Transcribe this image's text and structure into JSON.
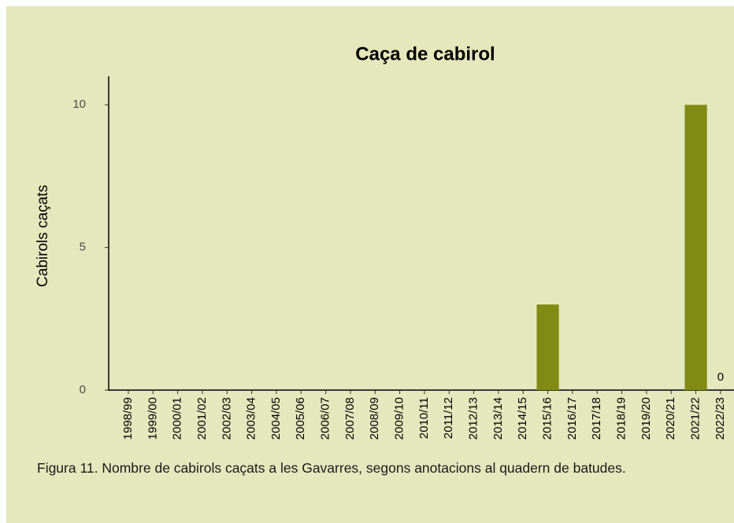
{
  "chart_data": {
    "type": "bar",
    "title": "Caça de cabirol",
    "ylabel": "Cabirols caçats",
    "categories": [
      "1998/99",
      "1999/00",
      "2000/01",
      "2001/02",
      "2002/03",
      "2003/04",
      "2004/05",
      "2005/06",
      "2006/07",
      "2007/08",
      "2008/09",
      "2009/10",
      "2010/11",
      "2011/12",
      "2012/13",
      "2013/14",
      "2014/15",
      "2015/16",
      "2016/17",
      "2017/18",
      "2018/19",
      "2019/20",
      "2020/21",
      "2021/22",
      "2022/23"
    ],
    "values": [
      0,
      0,
      0,
      0,
      0,
      0,
      0,
      0,
      0,
      0,
      0,
      0,
      0,
      0,
      0,
      0,
      0,
      3,
      0,
      0,
      0,
      0,
      0,
      10,
      0
    ],
    "value_labels": [
      null,
      null,
      null,
      null,
      null,
      null,
      null,
      null,
      null,
      null,
      null,
      null,
      null,
      null,
      null,
      null,
      null,
      null,
      null,
      null,
      null,
      null,
      null,
      null,
      "0"
    ],
    "color": "#808b14",
    "ylim": [
      0,
      11
    ],
    "yticks": [
      0,
      5,
      10
    ],
    "grid": false
  },
  "caption": "Figura 11. Nombre de cabirols caçats a les Gavarres, segons anotacions al quadern de batudes."
}
